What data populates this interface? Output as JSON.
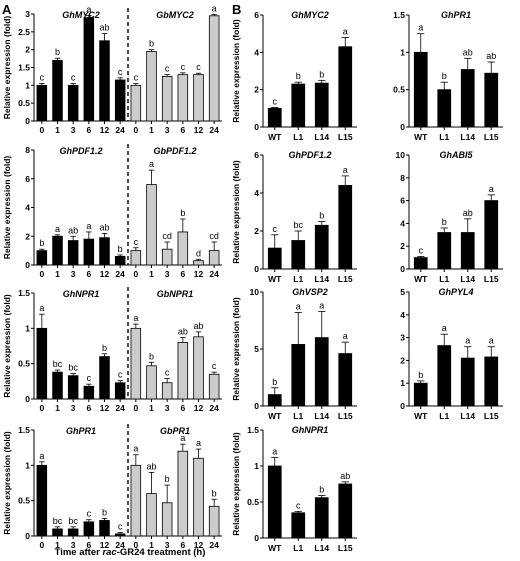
{
  "panel_labels": [
    "A",
    "B"
  ],
  "panel_a_xlabel_prefix": "Time after ",
  "panel_a_xlabel_italic": "rac",
  "panel_a_xlabel_suffix": "-GR24 treatment (h)",
  "colors": {
    "black_bar": "#000000",
    "gray_bar": "#cccccc"
  },
  "chart_data": [
    {
      "type": "bar",
      "panel": "A",
      "ylabel": "Relative expression (fold)",
      "ylim": [
        0,
        3
      ],
      "yticks": [
        0,
        0.5,
        1,
        1.5,
        2,
        2.5,
        3
      ],
      "categories": [
        "0",
        "1",
        "3",
        "6",
        "12",
        "24"
      ],
      "groups": [
        {
          "gene": "GhMYC2",
          "fill": "black",
          "values": [
            1.0,
            1.7,
            1.0,
            2.9,
            2.25,
            1.15
          ],
          "errors": [
            0.05,
            0.06,
            0.05,
            0.06,
            0.2,
            0.06
          ],
          "letters": [
            "c",
            "b",
            "c",
            "a",
            "ab",
            "c"
          ]
        },
        {
          "gene": "GbMYC2",
          "fill": "gray",
          "values": [
            1.0,
            1.95,
            1.25,
            1.3,
            1.3,
            2.95
          ],
          "errors": [
            0.05,
            0.05,
            0.05,
            0.05,
            0.04,
            0.04
          ],
          "letters": [
            "c",
            "b",
            "c",
            "c",
            "c",
            "a"
          ]
        }
      ]
    },
    {
      "type": "bar",
      "panel": "A",
      "ylabel": "Relative expression (fold)",
      "ylim": [
        0,
        8
      ],
      "yticks": [
        0,
        2,
        4,
        6,
        8
      ],
      "categories": [
        "0",
        "1",
        "3",
        "6",
        "12",
        "24"
      ],
      "groups": [
        {
          "gene": "GhPDF1.2",
          "fill": "black",
          "values": [
            1.0,
            2.0,
            1.7,
            1.8,
            1.9,
            0.6
          ],
          "errors": [
            0.1,
            0.1,
            0.3,
            0.5,
            0.3,
            0.1
          ],
          "letters": [
            "b",
            "a",
            "ab",
            "a",
            "ab",
            "b"
          ]
        },
        {
          "gene": "GbPDF1.2",
          "fill": "gray",
          "values": [
            1.0,
            5.6,
            1.1,
            2.3,
            0.3,
            1.0
          ],
          "errors": [
            0.2,
            1.0,
            0.5,
            0.9,
            0.1,
            0.6
          ],
          "letters": [
            "c",
            "a",
            "cd",
            "b",
            "d",
            "cd"
          ]
        }
      ]
    },
    {
      "type": "bar",
      "panel": "A",
      "ylabel": "Relative expression (fold)",
      "ylim": [
        0,
        1.5
      ],
      "yticks": [
        0,
        0.5,
        1,
        1.5
      ],
      "categories": [
        "0",
        "1",
        "3",
        "6",
        "12",
        "24"
      ],
      "groups": [
        {
          "gene": "GhNPR1",
          "fill": "black",
          "values": [
            1.0,
            0.38,
            0.33,
            0.18,
            0.6,
            0.23
          ],
          "errors": [
            0.2,
            0.03,
            0.03,
            0.03,
            0.04,
            0.03
          ],
          "letters": [
            "a",
            "bc",
            "bc",
            "c",
            "b",
            "c"
          ]
        },
        {
          "gene": "GbNPR1",
          "fill": "gray",
          "values": [
            1.0,
            0.47,
            0.23,
            0.8,
            0.88,
            0.35
          ],
          "errors": [
            0.06,
            0.05,
            0.06,
            0.07,
            0.07,
            0.03
          ],
          "letters": [
            "a",
            "b",
            "c",
            "ab",
            "ab",
            "c"
          ]
        }
      ]
    },
    {
      "type": "bar",
      "panel": "A",
      "ylabel": "Relative expression (fold)",
      "ylim": [
        0,
        1.5
      ],
      "yticks": [
        0,
        0.5,
        1,
        1.5
      ],
      "categories": [
        "0",
        "1",
        "3",
        "6",
        "12",
        "24"
      ],
      "groups": [
        {
          "gene": "GhPR1",
          "fill": "black",
          "values": [
            1.0,
            0.1,
            0.1,
            0.2,
            0.22,
            0.03
          ],
          "errors": [
            0.05,
            0.03,
            0.03,
            0.03,
            0.03,
            0.02
          ],
          "letters": [
            "a",
            "bc",
            "bc",
            "c",
            "b",
            "c"
          ]
        },
        {
          "gene": "GbPR1",
          "fill": "gray",
          "values": [
            1.0,
            0.6,
            0.47,
            1.2,
            1.1,
            0.42
          ],
          "errors": [
            0.15,
            0.3,
            0.25,
            0.1,
            0.13,
            0.1
          ],
          "letters": [
            "a",
            "ab",
            "b",
            "a",
            "a",
            "b"
          ]
        }
      ]
    },
    {
      "type": "bar",
      "panel": "B",
      "gene": "GhMYC2",
      "ylabel": "Relative expression (fold)",
      "ylim": [
        0,
        6
      ],
      "yticks": [
        0,
        2,
        4,
        6
      ],
      "categories": [
        "WT",
        "L1",
        "L14",
        "L15"
      ],
      "values": [
        1.0,
        2.3,
        2.35,
        4.3
      ],
      "errors": [
        0.05,
        0.1,
        0.15,
        0.5
      ],
      "letters": [
        "c",
        "b",
        "b",
        "a"
      ]
    },
    {
      "type": "bar",
      "panel": "B",
      "gene": "GhPR1",
      "ylabel": "",
      "ylim": [
        0,
        1.5
      ],
      "yticks": [
        0,
        0.5,
        1,
        1.5
      ],
      "categories": [
        "WT",
        "L1",
        "L14",
        "L15"
      ],
      "values": [
        1.0,
        0.5,
        0.77,
        0.72
      ],
      "errors": [
        0.25,
        0.1,
        0.15,
        0.15
      ],
      "letters": [
        "a",
        "b",
        "ab",
        "ab"
      ]
    },
    {
      "type": "bar",
      "panel": "B",
      "gene": "GhPDF1.2",
      "ylabel": "Relative expression (fold)",
      "ylim": [
        0,
        6
      ],
      "yticks": [
        0,
        2,
        4,
        6
      ],
      "categories": [
        "WT",
        "L1",
        "L14",
        "L15"
      ],
      "values": [
        1.1,
        1.5,
        2.3,
        4.4
      ],
      "errors": [
        0.7,
        0.5,
        0.2,
        0.5
      ],
      "letters": [
        "c",
        "bc",
        "b",
        "a"
      ]
    },
    {
      "type": "bar",
      "panel": "B",
      "gene": "GhABI5",
      "ylabel": "",
      "ylim": [
        0,
        10
      ],
      "yticks": [
        0,
        2,
        4,
        6,
        8,
        10
      ],
      "categories": [
        "WT",
        "L1",
        "L14",
        "L15"
      ],
      "values": [
        1.0,
        3.2,
        3.2,
        6.0
      ],
      "errors": [
        0.1,
        0.4,
        1.2,
        0.5
      ],
      "letters": [
        "c",
        "b",
        "ab",
        "a"
      ]
    },
    {
      "type": "bar",
      "panel": "B",
      "gene": "GhVSP2",
      "ylabel": "Relative expression (fold)",
      "ylim": [
        0,
        10
      ],
      "yticks": [
        0,
        5,
        10
      ],
      "categories": [
        "WT",
        "L1",
        "L14",
        "L15"
      ],
      "values": [
        1.0,
        5.4,
        6.0,
        4.6
      ],
      "errors": [
        0.6,
        2.8,
        2.3,
        1.0
      ],
      "letters": [
        "b",
        "a",
        "a",
        "a"
      ]
    },
    {
      "type": "bar",
      "panel": "B",
      "gene": "GhPYL4",
      "ylabel": "",
      "ylim": [
        0,
        5
      ],
      "yticks": [
        0,
        1,
        2,
        3,
        4,
        5
      ],
      "categories": [
        "WT",
        "L1",
        "L14",
        "L15"
      ],
      "values": [
        1.0,
        2.65,
        2.1,
        2.15
      ],
      "errors": [
        0.1,
        0.5,
        0.5,
        0.45
      ],
      "letters": [
        "b",
        "a",
        "a",
        "a"
      ]
    },
    {
      "type": "bar",
      "panel": "B",
      "gene": "GhNPR1",
      "ylabel": "Relative expression (fold)",
      "ylim": [
        0,
        1.5
      ],
      "yticks": [
        0,
        0.5,
        1,
        1.5
      ],
      "categories": [
        "WT",
        "L1",
        "L14",
        "L15"
      ],
      "values": [
        1.0,
        0.35,
        0.56,
        0.75
      ],
      "errors": [
        0.12,
        0.02,
        0.03,
        0.03
      ],
      "letters": [
        "a",
        "c",
        "b",
        "ab"
      ]
    }
  ]
}
